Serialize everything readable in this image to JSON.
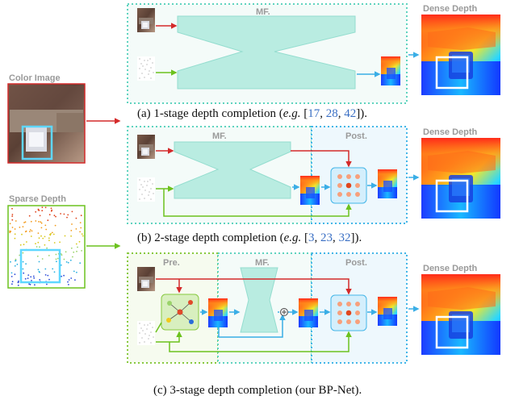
{
  "inputs": {
    "color_label": "Color Image",
    "sparse_label": "Sparse Depth"
  },
  "stages": {
    "mf_label": "MF.",
    "post_label": "Post.",
    "pre_label": "Pre."
  },
  "outputs": {
    "dense_label": "Dense Depth"
  },
  "captions": {
    "a": {
      "pre": "(a) 1-stage depth completion (",
      "eg": "e.g.",
      "open": " [",
      "refs": [
        "17",
        "28",
        "42"
      ],
      "close": "])."
    },
    "b": {
      "pre": "(b) 2-stage depth completion (",
      "eg": "e.g.",
      "open": " [",
      "refs": [
        "3",
        "23",
        "32"
      ],
      "close": "])."
    },
    "c": {
      "text": "(c) 3-stage depth completion (our BP-Net)."
    }
  },
  "colors": {
    "rgb_arrow": "#d42a2a",
    "sparse_arrow": "#6cc21e",
    "flow_arrow": "#3aaee6",
    "mf_box": "#5fd3bf",
    "post_box": "#43b6e8",
    "pre_box": "#88c93f",
    "network_fill": "#b9ece1"
  }
}
